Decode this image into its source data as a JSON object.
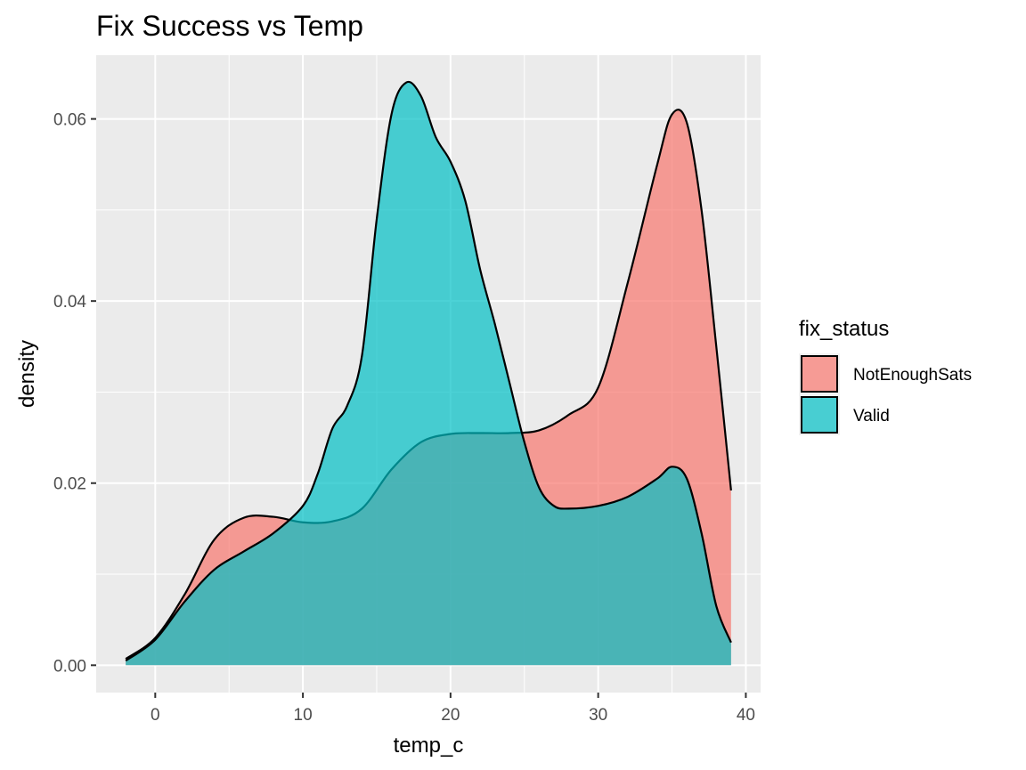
{
  "chart_data": {
    "type": "area",
    "title": "Fix Success vs Temp",
    "xlabel": "temp_c",
    "ylabel": "density",
    "xlim": [
      -4,
      41
    ],
    "ylim": [
      -0.003,
      0.067
    ],
    "x_ticks": [
      0,
      10,
      20,
      30,
      40
    ],
    "x_tick_labels": [
      "0",
      "10",
      "20",
      "30",
      "40"
    ],
    "y_ticks": [
      0.0,
      0.02,
      0.04,
      0.06
    ],
    "y_tick_labels": [
      "0.00",
      "0.02",
      "0.04",
      "0.06"
    ],
    "grid": true,
    "legend": {
      "title": "fix_status",
      "position": "right",
      "entries": [
        "NotEnoughSats",
        "Valid"
      ]
    },
    "series": [
      {
        "name": "NotEnoughSats",
        "color": "#F8766D",
        "x": [
          -2,
          0,
          2,
          4,
          6,
          8,
          10,
          12,
          14,
          16,
          18,
          20,
          22,
          24,
          26,
          28,
          30,
          32,
          34,
          35,
          36,
          37,
          38,
          39
        ],
        "values": [
          0.0007,
          0.003,
          0.0078,
          0.0138,
          0.0162,
          0.0163,
          0.0157,
          0.0158,
          0.0172,
          0.0215,
          0.0245,
          0.0254,
          0.0255,
          0.0255,
          0.0258,
          0.0275,
          0.0305,
          0.042,
          0.055,
          0.0605,
          0.0596,
          0.05,
          0.035,
          0.0192
        ]
      },
      {
        "name": "Valid",
        "color": "#00BFC4",
        "x": [
          -2,
          0,
          2,
          4,
          6,
          8,
          10,
          11,
          12,
          13,
          14,
          15,
          16,
          17,
          18,
          19,
          20,
          21,
          22,
          23,
          24,
          25,
          26,
          27,
          28,
          30,
          32,
          34,
          35,
          36,
          37,
          38,
          39
        ],
        "values": [
          0.0005,
          0.0028,
          0.007,
          0.0105,
          0.0125,
          0.0145,
          0.0175,
          0.021,
          0.026,
          0.0285,
          0.034,
          0.049,
          0.0605,
          0.064,
          0.0625,
          0.058,
          0.0553,
          0.051,
          0.0435,
          0.0375,
          0.031,
          0.0245,
          0.0195,
          0.0175,
          0.0172,
          0.0175,
          0.0185,
          0.0205,
          0.0218,
          0.0205,
          0.0145,
          0.0065,
          0.0025
        ]
      }
    ]
  }
}
